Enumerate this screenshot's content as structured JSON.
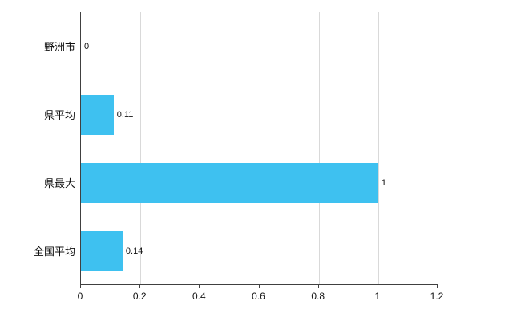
{
  "chart_data": {
    "type": "bar",
    "orientation": "horizontal",
    "title": "",
    "xlabel": "",
    "ylabel": "",
    "categories": [
      "野洲市",
      "県平均",
      "県最大",
      "全国平均"
    ],
    "values": [
      0,
      0.11,
      1,
      0.14
    ],
    "value_labels": [
      "0",
      "0.11",
      "1",
      "0.14"
    ],
    "xlim": [
      0,
      1.2
    ],
    "x_ticks": [
      0,
      0.2,
      0.4,
      0.6,
      0.8,
      1,
      1.2
    ],
    "x_tick_labels": [
      "0",
      "0.2",
      "0.4",
      "0.6",
      "0.8",
      "1",
      "1.2"
    ],
    "bar_color": "#3ec1f0",
    "grid": true,
    "legend": "none"
  }
}
